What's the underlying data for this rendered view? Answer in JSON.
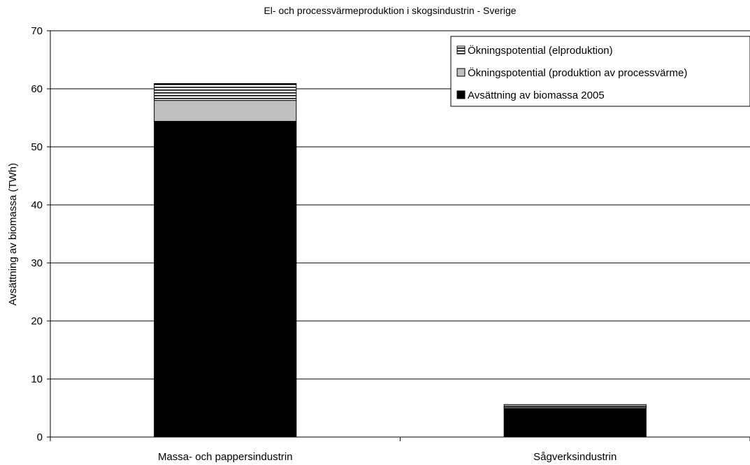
{
  "chart_data": {
    "type": "bar",
    "stacked": true,
    "title": "El- och processvärmeproduktion i skogsindustrin - Sverige",
    "xlabel": "",
    "ylabel": "Avsättning av biomassa (TWh)",
    "ylim": [
      0,
      70
    ],
    "yticks": [
      0,
      10,
      20,
      30,
      40,
      50,
      60,
      70
    ],
    "grid": true,
    "legend_position": "top-right",
    "categories": [
      "Massa- och pappersindustrin",
      "Sågverksindustrin"
    ],
    "series": [
      {
        "name": "Avsättning av biomassa 2005",
        "values": [
          54.4,
          4.9
        ],
        "color": "#000000",
        "pattern": "solid"
      },
      {
        "name": "Ökningspotential (produktion av processvärme)",
        "values": [
          3.6,
          0.2
        ],
        "color": "#c0c0c0",
        "pattern": "solid"
      },
      {
        "name": "Ökningspotential (elproduktion)",
        "values": [
          2.9,
          0.5
        ],
        "color": "#ffffff",
        "pattern": "horizontal-stripes"
      }
    ],
    "legend_order": [
      2,
      1,
      0
    ]
  }
}
